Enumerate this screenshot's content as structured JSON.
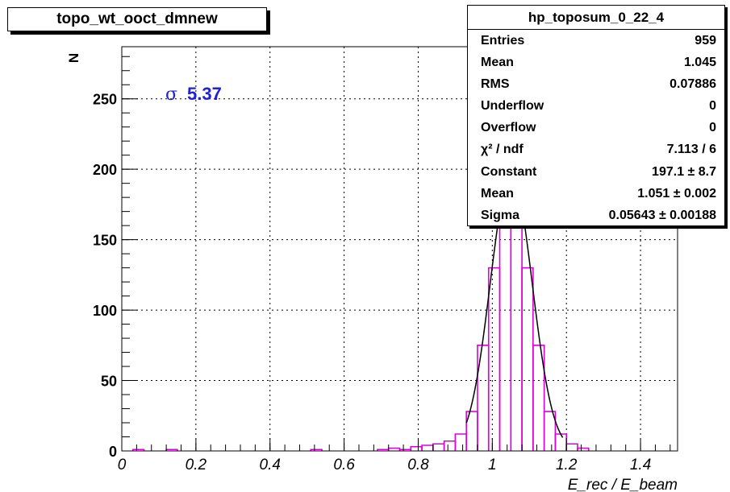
{
  "chart_data": {
    "type": "histogram",
    "title": "topo_wt_ooct_dmnew",
    "xlabel": "E_rec  / E_beam",
    "ylabel": "N",
    "xlim": [
      0,
      1.5
    ],
    "ylim": [
      0,
      287
    ],
    "x_ticks": [
      "0",
      "0.2",
      "0.4",
      "0.6",
      "0.8",
      "1",
      "1.2",
      "1.4"
    ],
    "y_ticks": [
      "0",
      "50",
      "100",
      "150",
      "200",
      "250"
    ],
    "grid": true,
    "bin_width": 0.03,
    "bins": [
      [
        0.0,
        0.03,
        0
      ],
      [
        0.03,
        0.06,
        1
      ],
      [
        0.06,
        0.09,
        0
      ],
      [
        0.12,
        0.15,
        1
      ],
      [
        0.51,
        0.54,
        1
      ],
      [
        0.69,
        0.72,
        1
      ],
      [
        0.72,
        0.75,
        2
      ],
      [
        0.75,
        0.78,
        1
      ],
      [
        0.78,
        0.81,
        3
      ],
      [
        0.81,
        0.84,
        4
      ],
      [
        0.84,
        0.87,
        5
      ],
      [
        0.87,
        0.9,
        7
      ],
      [
        0.9,
        0.93,
        12
      ],
      [
        0.93,
        0.96,
        28
      ],
      [
        0.96,
        0.99,
        75
      ],
      [
        0.99,
        1.02,
        130
      ],
      [
        1.02,
        1.05,
        220
      ],
      [
        1.05,
        1.08,
        225
      ],
      [
        1.08,
        1.11,
        130
      ],
      [
        1.11,
        1.14,
        75
      ],
      [
        1.14,
        1.17,
        28
      ],
      [
        1.17,
        1.2,
        12
      ],
      [
        1.2,
        1.23,
        5
      ],
      [
        1.23,
        1.26,
        2
      ],
      [
        1.26,
        1.29,
        0
      ]
    ],
    "fit": {
      "function": "gaus",
      "constant": 197.1,
      "mean": 1.051,
      "sigma": 0.05643,
      "range": [
        0.93,
        1.19
      ]
    },
    "colors": {
      "histogram": "#dd00dd",
      "fit": "#000000",
      "annotation": "#1f1fdf"
    }
  },
  "annotation": {
    "symbol": "σ",
    "value": "5.37"
  },
  "stats": {
    "title": "hp_toposum_0_22_4",
    "rows": [
      {
        "label": "Entries",
        "value": "959"
      },
      {
        "label": "Mean",
        "value": "1.045"
      },
      {
        "label": "RMS",
        "value": "0.07886"
      },
      {
        "label": "Underflow",
        "value": "0"
      },
      {
        "label": "Overflow",
        "value": "0"
      },
      {
        "label": "χ² / ndf",
        "value": "7.113 / 6"
      },
      {
        "label": "Constant",
        "value": "197.1 ± 8.7"
      },
      {
        "label": "Mean",
        "value": "1.051 ± 0.002"
      },
      {
        "label": "Sigma",
        "value": "0.05643 ± 0.00188"
      }
    ]
  }
}
